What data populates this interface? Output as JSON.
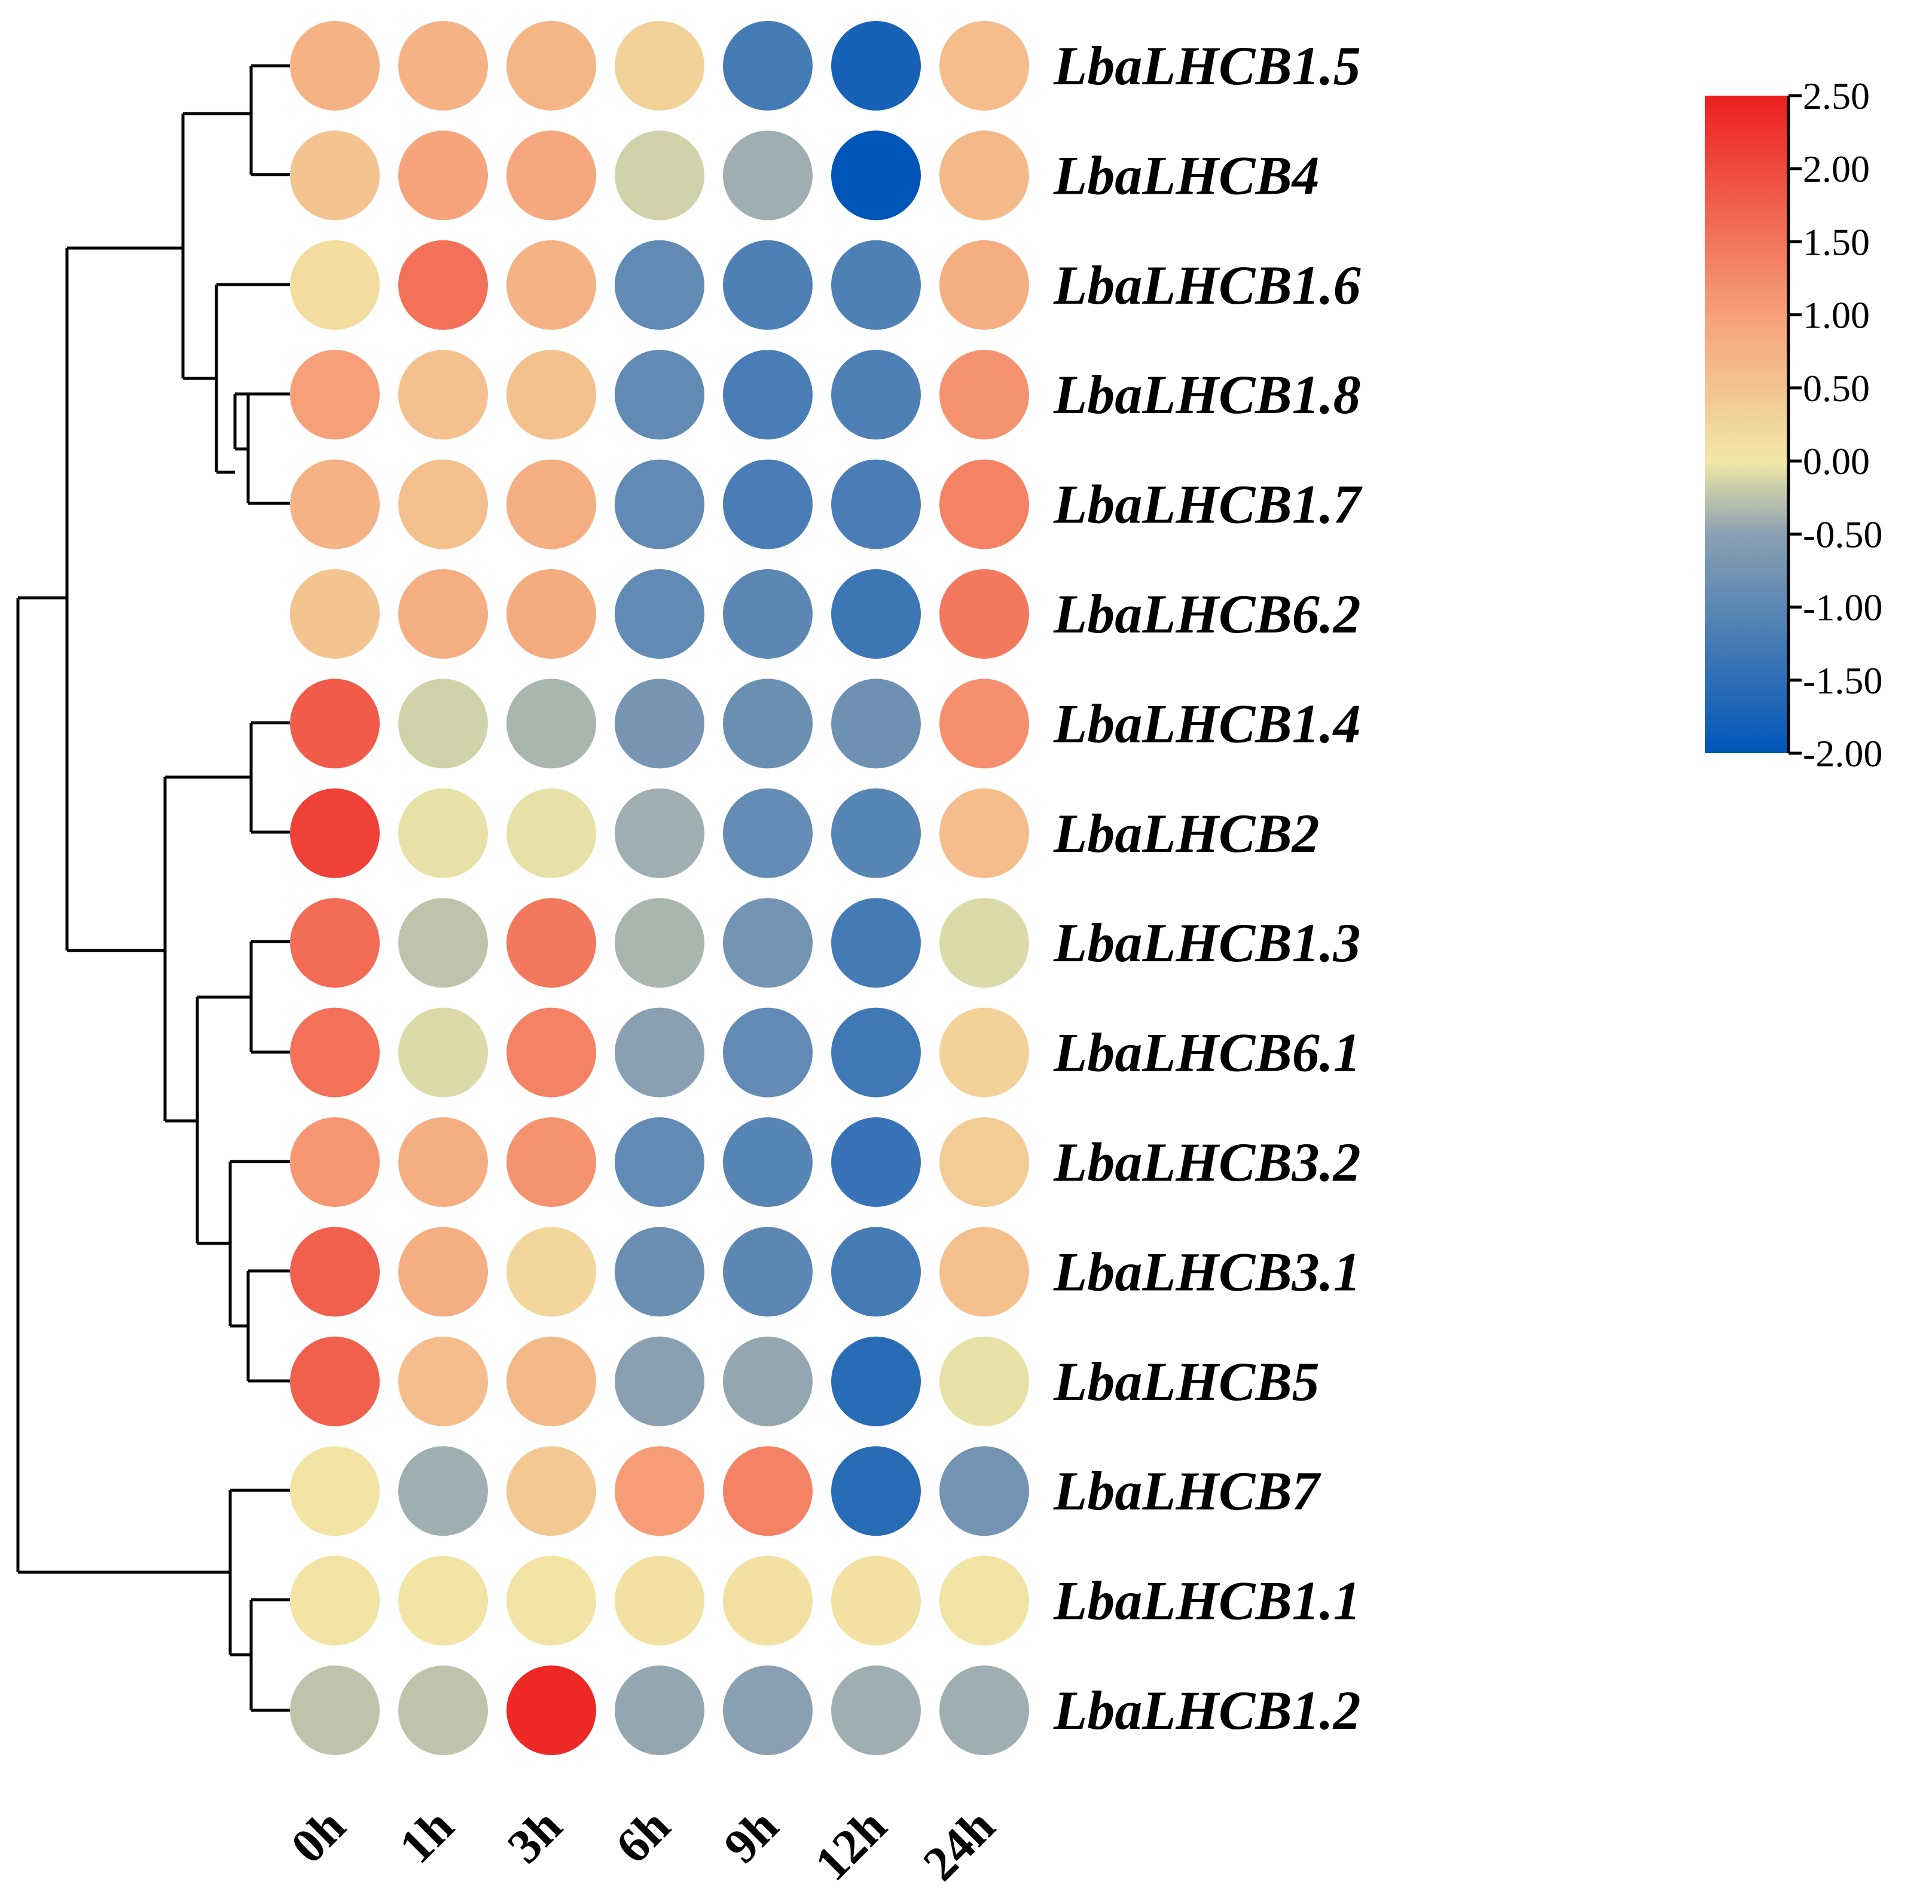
{
  "chart_data": {
    "type": "heatmap",
    "marker": "circle",
    "columns": [
      "0h",
      "1h",
      "3h",
      "6h",
      "9h",
      "12h",
      "24h"
    ],
    "rows": [
      {
        "name": "LbaLHCB1.5",
        "values": [
          0.75,
          0.75,
          0.7,
          0.3,
          -1.25,
          -1.75,
          0.6
        ]
      },
      {
        "name": "LbaLHCB4",
        "values": [
          0.5,
          0.95,
          0.9,
          -0.15,
          -0.4,
          -2.0,
          0.65
        ]
      },
      {
        "name": "LbaLHCB1.6",
        "values": [
          0.15,
          1.55,
          0.75,
          -0.95,
          -1.15,
          -1.15,
          0.8
        ]
      },
      {
        "name": "LbaLHCB1.8",
        "values": [
          1.0,
          0.55,
          0.55,
          -0.95,
          -1.2,
          -1.15,
          1.15
        ]
      },
      {
        "name": "LbaLHCB1.7",
        "values": [
          0.75,
          0.55,
          0.8,
          -0.95,
          -1.2,
          -1.2,
          1.35
        ]
      },
      {
        "name": "LbaLHCB6.2",
        "values": [
          0.5,
          0.8,
          0.85,
          -0.95,
          -1.0,
          -1.35,
          1.45
        ]
      },
      {
        "name": "LbaLHCB1.4",
        "values": [
          1.8,
          -0.15,
          -0.35,
          -0.7,
          -0.85,
          -0.8,
          1.2
        ]
      },
      {
        "name": "LbaLHCB2",
        "values": [
          2.1,
          -0.05,
          -0.05,
          -0.4,
          -0.9,
          -1.05,
          0.6
        ]
      },
      {
        "name": "LbaLHCB1.3",
        "values": [
          1.6,
          -0.25,
          1.45,
          -0.35,
          -0.75,
          -1.25,
          -0.1
        ]
      },
      {
        "name": "LbaLHCB6.1",
        "values": [
          1.55,
          -0.1,
          1.35,
          -0.5,
          -0.95,
          -1.3,
          0.3
        ]
      },
      {
        "name": "LbaLHCB3.2",
        "values": [
          1.1,
          0.8,
          1.15,
          -0.95,
          -1.05,
          -1.4,
          0.4
        ]
      },
      {
        "name": "LbaLHCB3.1",
        "values": [
          1.75,
          0.8,
          0.25,
          -0.85,
          -1.0,
          -1.25,
          0.55
        ]
      },
      {
        "name": "LbaLHCB5",
        "values": [
          1.75,
          0.6,
          0.65,
          -0.5,
          -0.45,
          -1.55,
          -0.05
        ]
      },
      {
        "name": "LbaLHCB7",
        "values": [
          0.05,
          -0.4,
          0.45,
          1.05,
          1.35,
          -1.55,
          -0.75
        ]
      },
      {
        "name": "LbaLHCB1.1",
        "values": [
          0.05,
          0.05,
          0.05,
          0.1,
          0.1,
          0.1,
          0.05
        ]
      },
      {
        "name": "LbaLHCB1.2",
        "values": [
          -0.25,
          -0.25,
          2.4,
          -0.45,
          -0.5,
          -0.4,
          -0.4
        ]
      }
    ],
    "scale": {
      "min": -2.0,
      "max": 2.5,
      "ticks": [
        "2.50",
        "2.00",
        "1.50",
        "1.00",
        "0.50",
        "0.00",
        "-0.50",
        "-1.00",
        "-1.50",
        "-2.00"
      ],
      "colors": [
        "#0055b8",
        "#8aa0b2",
        "#f1e8a6",
        "#f6a079",
        "#ec1f1f"
      ]
    },
    "dendrogram": "row clustering, drawn on the left",
    "legend": "colorbar, top-right"
  }
}
